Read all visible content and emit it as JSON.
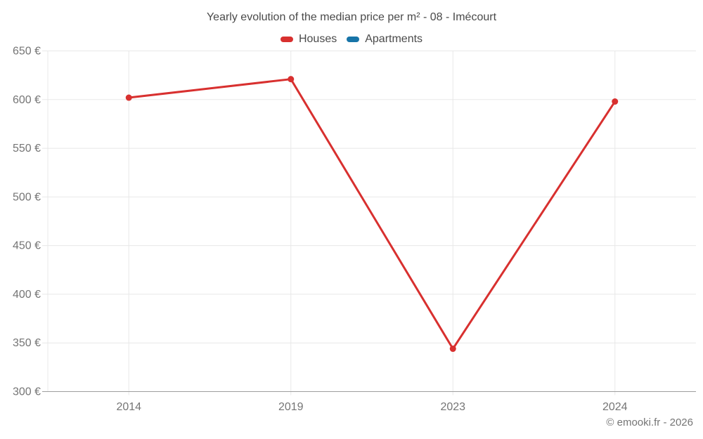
{
  "chart": {
    "title": "Yearly evolution of the median price per m² - 08 - Imécourt",
    "footer": "© emooki.fr - 2026"
  },
  "chart_data": {
    "type": "line",
    "title": "Yearly evolution of the median price per m² - 08 - Imécourt",
    "categories": [
      "2014",
      "2019",
      "2023",
      "2024"
    ],
    "series": [
      {
        "name": "Houses",
        "color": "#d8302f",
        "values": [
          602,
          621,
          344,
          598
        ]
      },
      {
        "name": "Apartments",
        "color": "#1774a8",
        "values": []
      }
    ],
    "ylim": [
      300,
      650
    ],
    "ytick_step": 50,
    "yticks": [
      "300 €",
      "350 €",
      "400 €",
      "450 €",
      "500 €",
      "550 €",
      "600 €",
      "650 €"
    ],
    "ylabel": "",
    "xlabel": "",
    "grid": true,
    "legend_position": "top",
    "colors": {
      "grid": "#e8e8e8",
      "axis": "#9e9e9e",
      "tick_label": "#757575",
      "title_text": "#4a4a4a"
    }
  }
}
